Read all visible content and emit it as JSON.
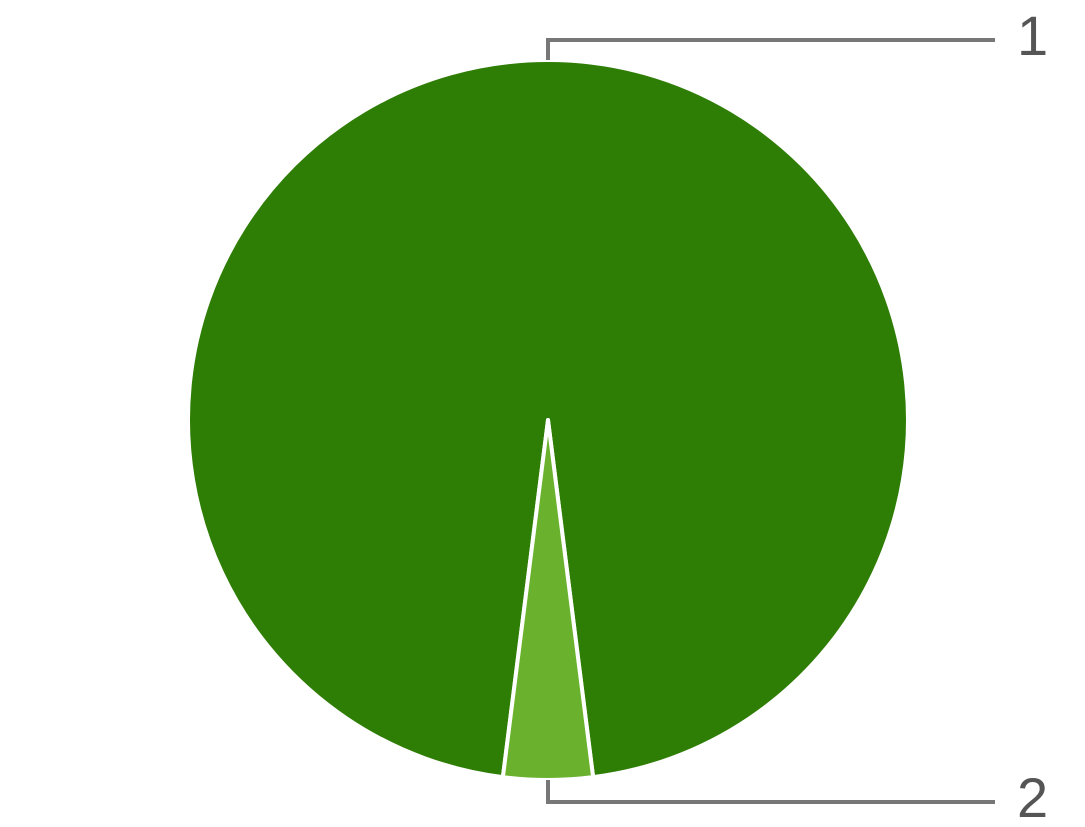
{
  "chart_data": {
    "type": "pie",
    "categories": [
      "1",
      "2"
    ],
    "values": [
      96,
      4
    ],
    "colors": [
      "#2e7d04",
      "#6ab22e"
    ]
  }
}
